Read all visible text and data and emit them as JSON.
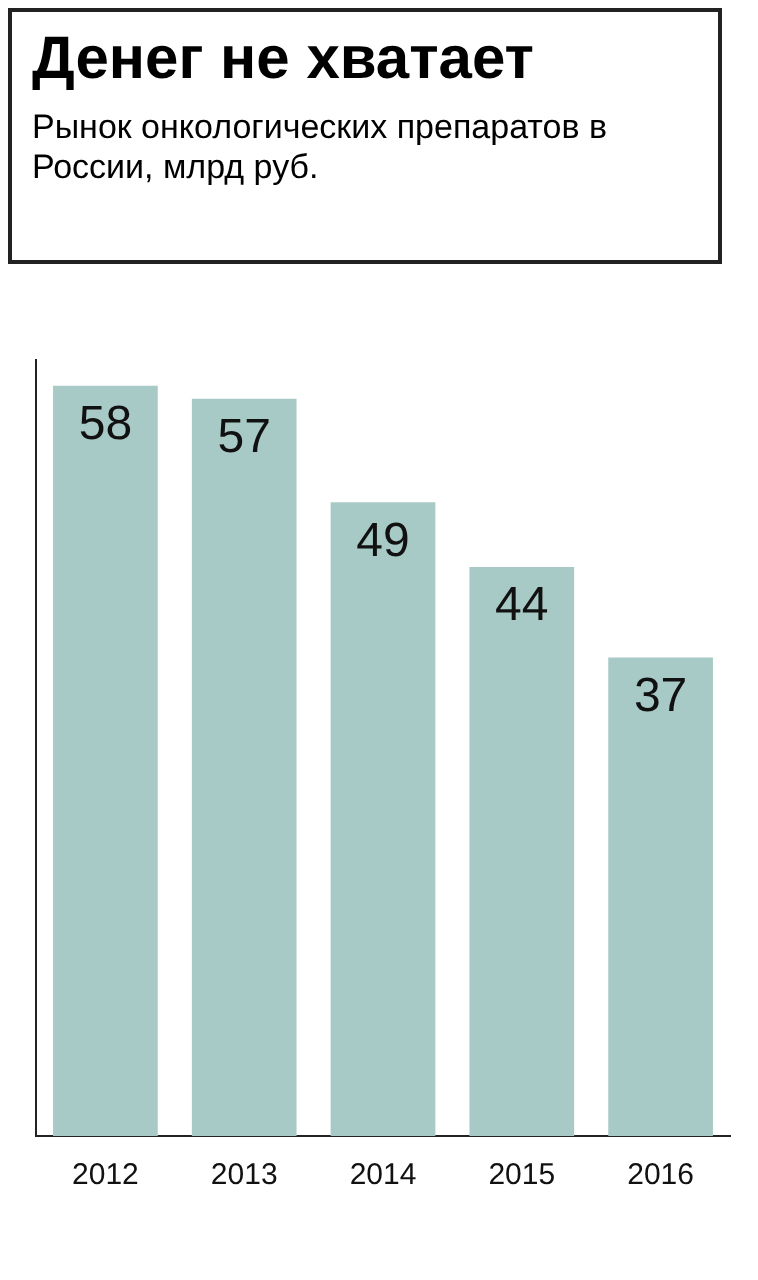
{
  "chart_data": {
    "type": "bar",
    "title": "Денег не хватает",
    "subtitle": "Рынок онкологических препаратов в России, млрд руб.",
    "categories": [
      "2012",
      "2013",
      "2014",
      "2015",
      "2016"
    ],
    "values": [
      58,
      57,
      49,
      44,
      37
    ],
    "color": "#a8cac6",
    "data_labels": true,
    "grid": false,
    "legend": false
  }
}
